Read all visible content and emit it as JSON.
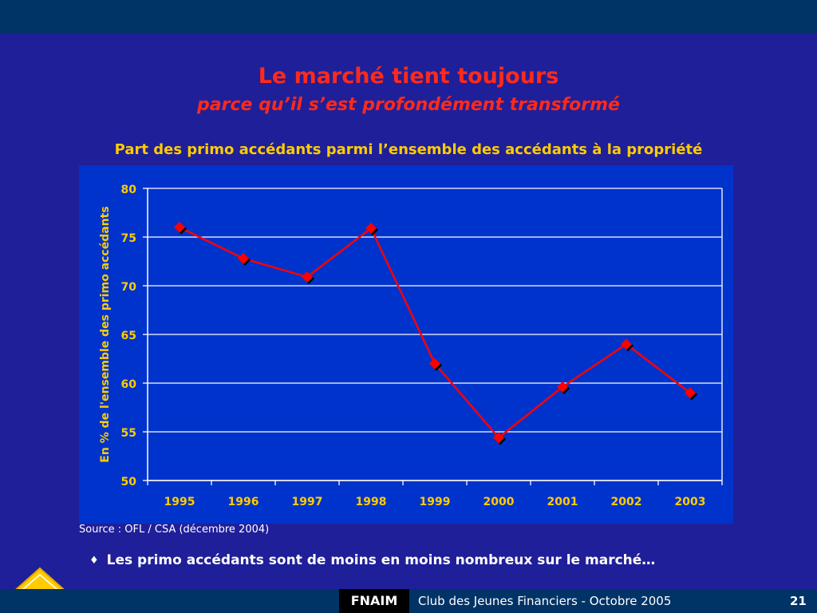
{
  "slide": {
    "title": "Le marché tient toujours",
    "subtitle": "parce qu’il s’est profondément transformé",
    "chart_heading": "Part des primo accédants parmi l’ensemble des accédants à la propriété",
    "source": "Source : OFL / CSA  (décembre 2004)",
    "bullet": "Les primo accédants sont de moins en moins nombreux sur le marché…",
    "bullet_icon": "diamond-bullet-icon",
    "footer": {
      "brand": "FNAIM",
      "event": "Club des Jeunes Financiers - Octobre 2005",
      "page": "21"
    },
    "logo_text": "FNAIM"
  },
  "colors": {
    "background": "#1f1f99",
    "plot_area": "#0033cc",
    "title": "#ff2a1a",
    "axis_text": "#ffcc00",
    "series": "#ff0000",
    "marker_shadow": "#000000",
    "bars": "#003366",
    "logo": "#ffcc00"
  },
  "chart_data": {
    "type": "line",
    "title": "Part des primo accédants parmi l’ensemble des accédants à la propriété",
    "xlabel": "",
    "ylabel": "En % de l'ensemble des primo accédants",
    "categories": [
      "1995",
      "1996",
      "1997",
      "1998",
      "1999",
      "2000",
      "2001",
      "2002",
      "2003"
    ],
    "series": [
      {
        "values": [
          76,
          72.8,
          70.9,
          75.9,
          62,
          54.4,
          59.6,
          64,
          59
        ]
      }
    ],
    "ylim": [
      50,
      80
    ],
    "yticks": [
      50,
      55,
      60,
      65,
      70,
      75,
      80
    ],
    "grid": true,
    "legend": "none",
    "marker": "diamond"
  }
}
